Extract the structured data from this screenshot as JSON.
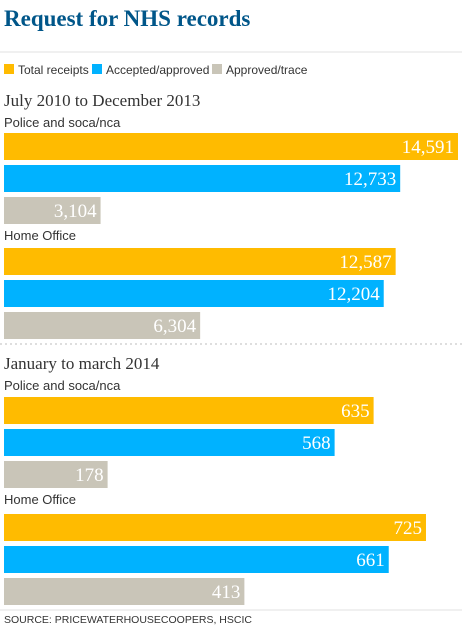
{
  "title": "Request for NHS records",
  "colors": {
    "title": "#005689",
    "series": [
      "#ffbb00",
      "#00b2ff",
      "#c9c5b8"
    ]
  },
  "chart_data": [
    {
      "type": "bar",
      "orientation": "horizontal",
      "title": "July 2010 to December 2013",
      "categories": [
        "Police and soca/nca",
        "Home Office"
      ],
      "series": [
        {
          "name": "Total receipts",
          "values": [
            14591,
            12587
          ]
        },
        {
          "name": "Accepted/approved",
          "values": [
            12733,
            12204
          ]
        },
        {
          "name": "Approved/trace",
          "values": [
            3104,
            6304
          ]
        }
      ],
      "value_labels": [
        [
          "14,591",
          "12,587"
        ],
        [
          "12,733",
          "12,204"
        ],
        [
          "3,104",
          "6,304"
        ]
      ],
      "xlim": [
        0,
        14591
      ]
    },
    {
      "type": "bar",
      "orientation": "horizontal",
      "title": "January to march 2014",
      "categories": [
        "Police and soca/nca",
        "Home Office"
      ],
      "series": [
        {
          "name": "Total receipts",
          "values": [
            635,
            725
          ]
        },
        {
          "name": "Accepted/approved",
          "values": [
            568,
            661
          ]
        },
        {
          "name": "Approved/trace",
          "values": [
            178,
            413
          ]
        }
      ],
      "value_labels": [
        [
          "635",
          "725"
        ],
        [
          "568",
          "661"
        ],
        [
          "178",
          "413"
        ]
      ],
      "xlim": [
        0,
        780
      ]
    }
  ],
  "source": "SOURCE: PRICEWATERHOUSECOOPERS, HSCIC"
}
